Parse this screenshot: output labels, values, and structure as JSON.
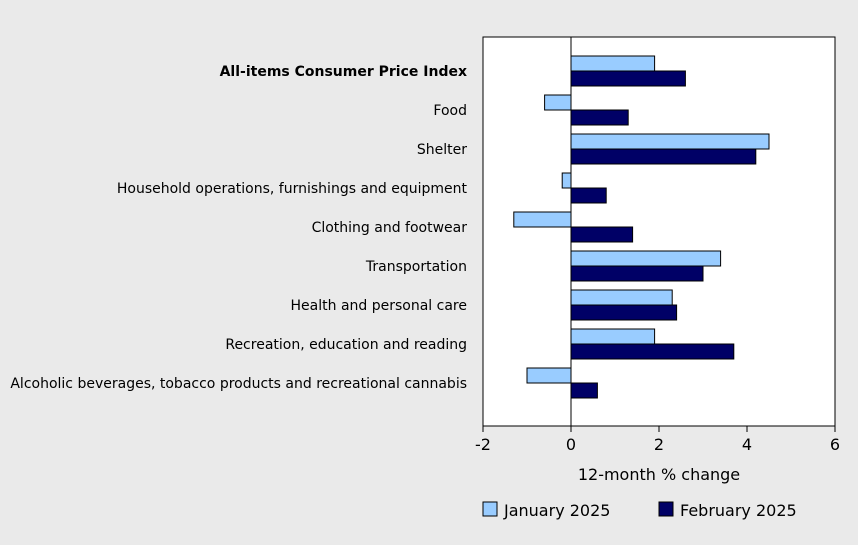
{
  "chart_data": {
    "type": "bar",
    "orientation": "horizontal",
    "xlabel": "12-month % change",
    "xlim": [
      -2,
      6
    ],
    "xticks": [
      -2,
      0,
      2,
      4,
      6
    ],
    "categories": [
      "All-items Consumer Price Index",
      "Food",
      "Shelter",
      "Household operations, furnishings and equipment",
      "Clothing and footwear",
      "Transportation",
      "Health and personal care",
      "Recreation, education and reading",
      "Alcoholic beverages, tobacco products and recreational cannabis"
    ],
    "bold_category_index": 0,
    "series": [
      {
        "name": "January 2025",
        "color": "#99ccff",
        "values": [
          1.9,
          -0.6,
          4.5,
          -0.2,
          -1.3,
          3.4,
          2.3,
          1.9,
          -1.0
        ]
      },
      {
        "name": "February 2025",
        "color": "#000066",
        "values": [
          2.6,
          1.3,
          4.2,
          0.8,
          1.4,
          3.0,
          2.4,
          3.7,
          0.6
        ]
      }
    ],
    "grid": false,
    "legend_position": "bottom"
  }
}
